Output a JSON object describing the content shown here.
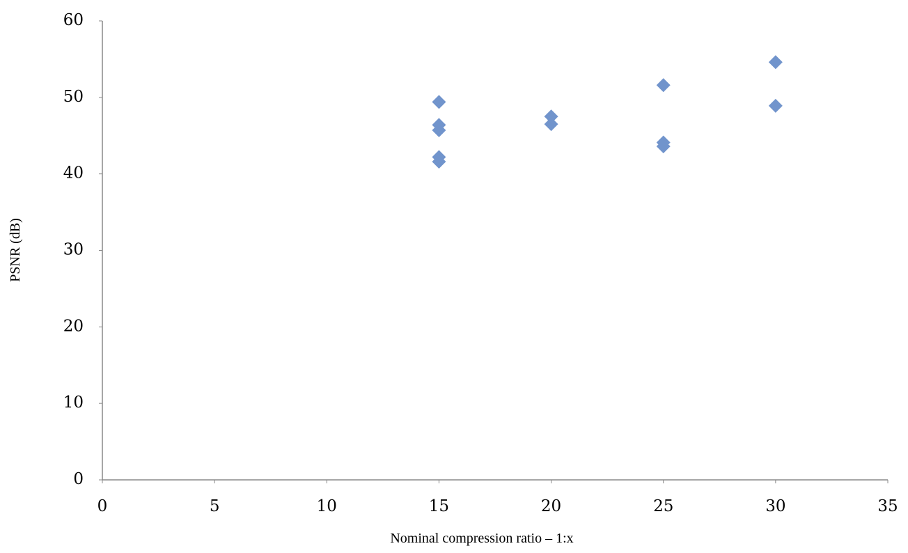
{
  "chart_data": {
    "type": "scatter",
    "x_label": "Nominal compression ratio – 1:x",
    "y_label": "PSNR (dB)",
    "series": [
      {
        "color": "#7194cc",
        "x": [
          15,
          15,
          15,
          15,
          15,
          20,
          20,
          25,
          25,
          25,
          30,
          30
        ],
        "values": [
          49.4,
          46.4,
          45.7,
          42.2,
          41.6,
          47.5,
          46.5,
          51.6,
          44.1,
          43.6,
          54.6,
          48.9
        ]
      }
    ],
    "xlim": [
      0,
      35
    ],
    "xticks": [
      0,
      5,
      10,
      15,
      20,
      25,
      30,
      35
    ],
    "ylim": [
      0,
      60
    ],
    "yticks": [
      0,
      10,
      20,
      30,
      40,
      50,
      60
    ],
    "grid": false
  }
}
